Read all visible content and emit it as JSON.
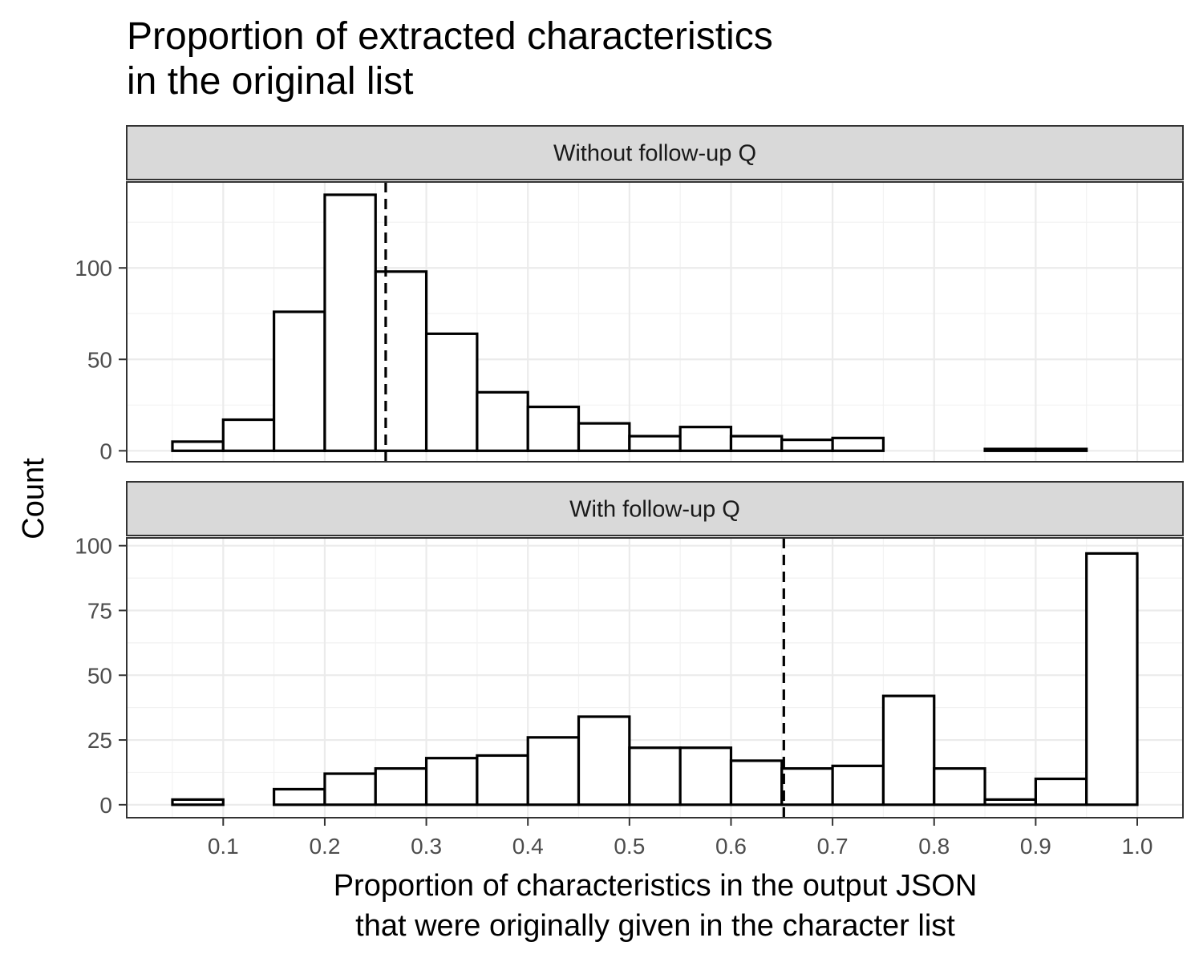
{
  "chart_data": {
    "type": "bar",
    "title": "Proportion of extracted characteristics\nin the original list",
    "xlabel": "Proportion of characteristics in the output JSON\nthat were originally given in the character list",
    "ylabel": "Count",
    "x_ticks": [
      "0.1",
      "0.2",
      "0.3",
      "0.4",
      "0.5",
      "0.6",
      "0.7",
      "0.8",
      "0.9",
      "1.0"
    ],
    "x_tick_values": [
      0.1,
      0.2,
      0.3,
      0.4,
      0.5,
      0.6,
      0.7,
      0.8,
      0.9,
      1.0
    ],
    "xlim": [
      0.005,
      1.045
    ],
    "bin_width": 0.05,
    "bin_starts": [
      0.05,
      0.1,
      0.15,
      0.2,
      0.25,
      0.3,
      0.35,
      0.4,
      0.45,
      0.5,
      0.55,
      0.6,
      0.65,
      0.7,
      0.75,
      0.8,
      0.85,
      0.9,
      0.95
    ],
    "grid": true,
    "theme": "bw",
    "panels": [
      {
        "strip_label": "Without follow-up Q",
        "ylim": [
          -6,
          147
        ],
        "y_ticks": [
          "0",
          "50",
          "100"
        ],
        "y_tick_values": [
          0,
          50,
          100
        ],
        "minor_y": [
          25,
          75,
          125
        ],
        "values": [
          5,
          17,
          76,
          140,
          98,
          64,
          32,
          24,
          15,
          8,
          13,
          8,
          6,
          7,
          0,
          0,
          1,
          1,
          0
        ],
        "mean_line": 0.26
      },
      {
        "strip_label": "With follow-up Q",
        "ylim": [
          -5,
          103
        ],
        "y_ticks": [
          "0",
          "25",
          "50",
          "75",
          "100"
        ],
        "y_tick_values": [
          0,
          25,
          50,
          75,
          100
        ],
        "minor_y": [
          12.5,
          37.5,
          62.5,
          87.5
        ],
        "values": [
          2,
          0,
          6,
          12,
          14,
          18,
          19,
          26,
          34,
          22,
          22,
          17,
          14,
          15,
          42,
          14,
          2,
          10,
          97
        ],
        "mean_line": 0.652
      }
    ]
  }
}
